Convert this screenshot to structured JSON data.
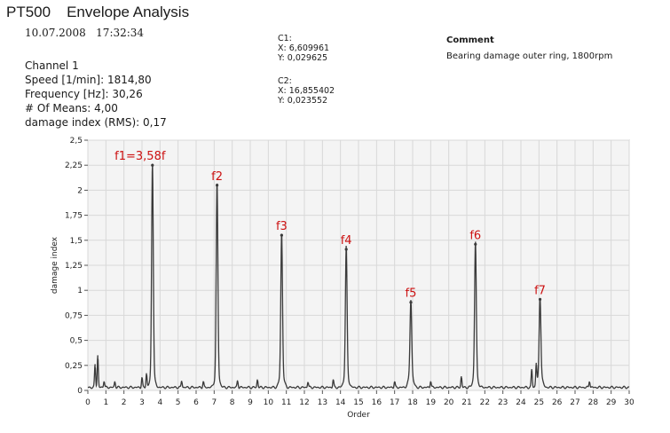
{
  "header": {
    "device": "PT500",
    "title": "Envelope Analysis",
    "date": "10.07.2008",
    "time": "17:32:34"
  },
  "info": {
    "channel": "Channel 1",
    "speed": "Speed [1/min]: 1814,80",
    "frequency": "Frequency [Hz]: 30,26",
    "means": "# Of Means: 4,00",
    "damage_index": "damage index (RMS): 0,17"
  },
  "cursors": {
    "c1": {
      "label": "C1:",
      "x": "X: 6,609961",
      "y": "Y: 0,029625"
    },
    "c2": {
      "label": "C2:",
      "x": "X: 16,855402",
      "y": "Y: 0,023552"
    }
  },
  "comment": {
    "heading": "Comment",
    "text": "Bearing damage outer ring, 1800rpm"
  },
  "chart_data": {
    "type": "line",
    "xlabel": "Order",
    "ylabel": "damage index",
    "xlim": [
      0,
      30
    ],
    "ylim": [
      0,
      2.5
    ],
    "grid": true,
    "x_ticks": [
      "0",
      "1",
      "2",
      "3",
      "4",
      "5",
      "6",
      "7",
      "8",
      "9",
      "10",
      "11",
      "12",
      "13",
      "14",
      "15",
      "16",
      "17",
      "18",
      "19",
      "20",
      "21",
      "22",
      "23",
      "24",
      "25",
      "26",
      "27",
      "28",
      "29",
      "30"
    ],
    "y_ticks": [
      {
        "value": 0,
        "label": "0"
      },
      {
        "value": 0.25,
        "label": "0,25"
      },
      {
        "value": 0.5,
        "label": "0,5"
      },
      {
        "value": 0.75,
        "label": "0,75"
      },
      {
        "value": 1,
        "label": "1"
      },
      {
        "value": 1.25,
        "label": "1,25"
      },
      {
        "value": 1.5,
        "label": "1,5"
      },
      {
        "value": 1.75,
        "label": "1,75"
      },
      {
        "value": 2,
        "label": "2"
      },
      {
        "value": 2.25,
        "label": "2,25"
      },
      {
        "value": 2.5,
        "label": "2,5"
      }
    ],
    "line_color": "#3a3a3a",
    "annotation_color": "#cc1111",
    "peaks": [
      {
        "x": 3.58,
        "y": 2.25,
        "label": "f1=3,58f"
      },
      {
        "x": 7.16,
        "y": 2.05,
        "label": "f2"
      },
      {
        "x": 10.74,
        "y": 1.55,
        "label": "f3"
      },
      {
        "x": 14.32,
        "y": 1.41,
        "label": "f4"
      },
      {
        "x": 17.9,
        "y": 0.88,
        "label": "f5"
      },
      {
        "x": 21.48,
        "y": 1.46,
        "label": "f6"
      },
      {
        "x": 25.06,
        "y": 0.91,
        "label": "f7"
      }
    ],
    "minor_peaks": [
      {
        "x": 0.4,
        "y": 0.23
      },
      {
        "x": 0.55,
        "y": 0.32
      },
      {
        "x": 0.9,
        "y": 0.07
      },
      {
        "x": 1.5,
        "y": 0.06
      },
      {
        "x": 3.0,
        "y": 0.1
      },
      {
        "x": 3.25,
        "y": 0.14
      },
      {
        "x": 5.2,
        "y": 0.07
      },
      {
        "x": 6.4,
        "y": 0.06
      },
      {
        "x": 8.3,
        "y": 0.07
      },
      {
        "x": 9.4,
        "y": 0.08
      },
      {
        "x": 12.2,
        "y": 0.06
      },
      {
        "x": 13.6,
        "y": 0.08
      },
      {
        "x": 17.0,
        "y": 0.06
      },
      {
        "x": 19.0,
        "y": 0.07
      },
      {
        "x": 20.7,
        "y": 0.11
      },
      {
        "x": 24.6,
        "y": 0.18
      },
      {
        "x": 24.85,
        "y": 0.22
      },
      {
        "x": 27.8,
        "y": 0.07
      }
    ]
  }
}
